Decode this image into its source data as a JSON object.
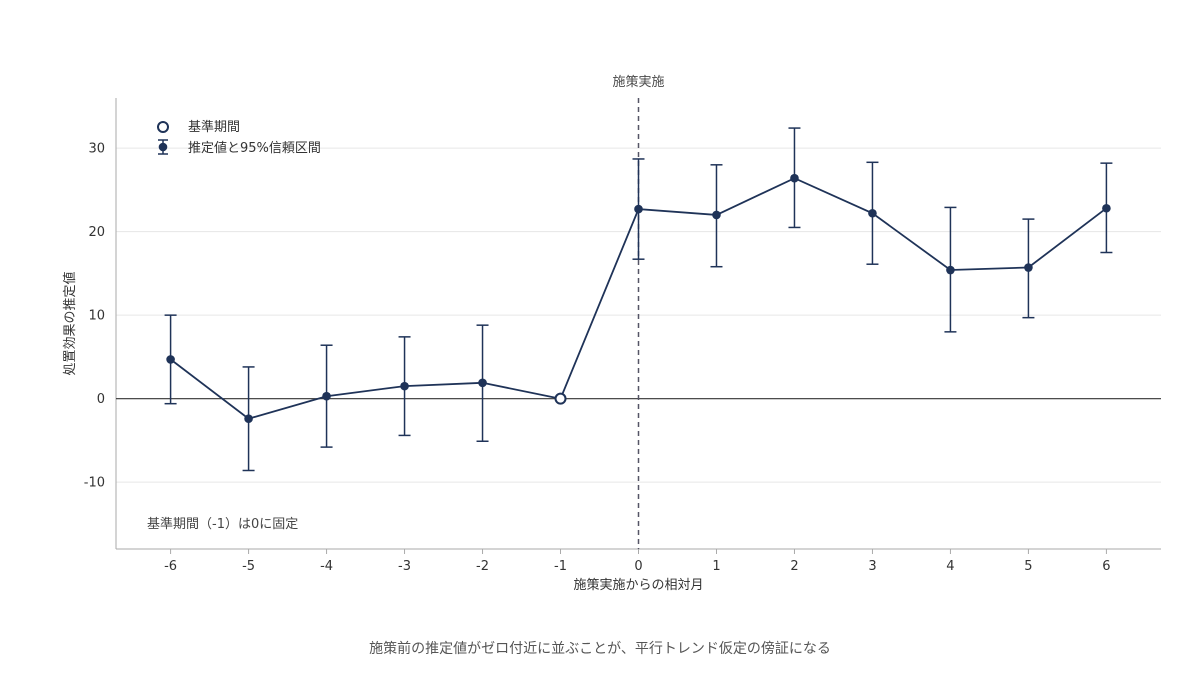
{
  "chart_data": {
    "type": "scatter",
    "xlabel": "施策実施からの相対月",
    "ylabel": "処置効果の推定値",
    "x_ticks": [
      -6,
      -5,
      -4,
      -3,
      -2,
      -1,
      0,
      1,
      2,
      3,
      4,
      5,
      6
    ],
    "y_ticks": [
      -10,
      0,
      10,
      20,
      30
    ],
    "xlim": [
      -6.7,
      6.7
    ],
    "ylim": [
      -18,
      36
    ],
    "grid": "horizontal",
    "legend_position": "top-left",
    "legend": [
      "基準期間",
      "推定値と95%信頼区間"
    ],
    "series": [
      {
        "points": [
          {
            "x": -6,
            "y": 4.7,
            "lo": -0.6,
            "hi": 10.0
          },
          {
            "x": -5,
            "y": -2.4,
            "lo": -8.6,
            "hi": 3.8
          },
          {
            "x": -4,
            "y": 0.3,
            "lo": -5.8,
            "hi": 6.4
          },
          {
            "x": -3,
            "y": 1.5,
            "lo": -4.4,
            "hi": 7.4
          },
          {
            "x": -2,
            "y": 1.9,
            "lo": -5.1,
            "hi": 8.8
          },
          {
            "x": -1,
            "y": 0.0,
            "reference": true
          },
          {
            "x": 0,
            "y": 22.7,
            "lo": 16.7,
            "hi": 28.7
          },
          {
            "x": 1,
            "y": 22.0,
            "lo": 15.8,
            "hi": 28.0
          },
          {
            "x": 2,
            "y": 26.4,
            "lo": 20.5,
            "hi": 32.4
          },
          {
            "x": 3,
            "y": 22.2,
            "lo": 16.1,
            "hi": 28.3
          },
          {
            "x": 4,
            "y": 15.4,
            "lo": 8.0,
            "hi": 22.9
          },
          {
            "x": 5,
            "y": 15.7,
            "lo": 9.7,
            "hi": 21.5
          },
          {
            "x": 6,
            "y": 22.8,
            "lo": 17.5,
            "hi": 28.2
          }
        ]
      }
    ],
    "vline": {
      "x": 0,
      "label": "施策実施"
    },
    "hline": {
      "y": 0
    },
    "annotation": "基準期間（-1）は0に固定",
    "caption": "施策前の推定値がゼロ付近に並ぶことが、平行トレンド仮定の傍証になる"
  },
  "colors": {
    "series": "#1f3358",
    "grid": "#e6e6e6",
    "axis": "#aaaaaa",
    "zero_line": "#333333",
    "vline": "#555566"
  }
}
